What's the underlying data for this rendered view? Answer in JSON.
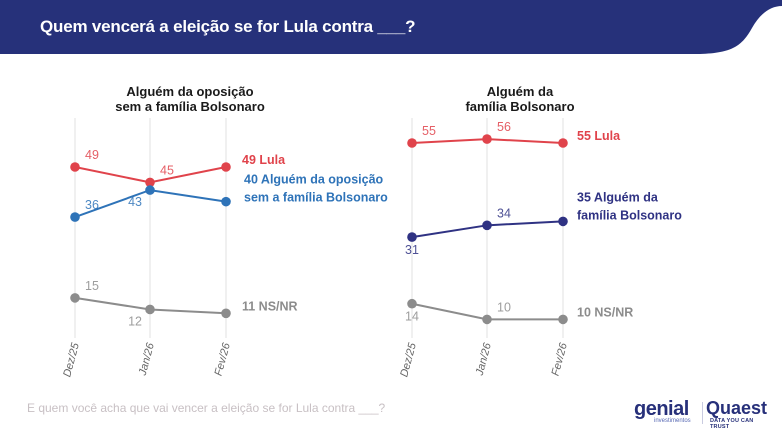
{
  "header": {
    "title": "Quem vencerá a eleição se for Lula contra ___?"
  },
  "footer": {
    "question": "E quem você acha que vai vencer a eleição se for Lula contra ___?",
    "logo_genial": "genial",
    "logo_genial_sub": "investimentos",
    "logo_quaest": "Quaest",
    "logo_quaest_sub": "DATA YOU CAN TRUST"
  },
  "colors": {
    "header_bg": "#26317a",
    "lula": "#e0434b",
    "opposition": "#2e73b8",
    "bolsonaro_family": "#2f3283",
    "nsnr": "#8c8c8c"
  },
  "chart_data": [
    {
      "type": "line",
      "title": "Alguém da oposição\nsem a família Bolsonaro",
      "title_lines": [
        "Alguém da oposição",
        "sem a família Bolsonaro"
      ],
      "x": [
        "Dez/25",
        "Jan/26",
        "Fev/26"
      ],
      "series": [
        {
          "name": "Lula",
          "end_label": [
            "49 Lula"
          ],
          "color": "#e0434b",
          "values": [
            49,
            45,
            49
          ],
          "label_pos": [
            "above",
            "above",
            "none"
          ]
        },
        {
          "name": "Alguém da oposição sem a família Bolsonaro",
          "end_label": [
            "40 Alguém da oposição",
            "sem a família Bolsonaro"
          ],
          "color": "#2e73b8",
          "values": [
            36,
            43,
            40
          ],
          "label_pos": [
            "above",
            "below-left",
            "none"
          ]
        },
        {
          "name": "NS/NR",
          "end_label": [
            "11 NS/NR"
          ],
          "color": "#8c8c8c",
          "values": [
            15,
            12,
            11
          ],
          "label_pos": [
            "above",
            "below-left",
            "none"
          ]
        }
      ],
      "grid": "vertical"
    },
    {
      "type": "line",
      "title": "Alguém da\nfamília Bolsonaro",
      "title_lines": [
        "Alguém da",
        "família Bolsonaro"
      ],
      "x": [
        "Dez/25",
        "Jan/26",
        "Fev/26"
      ],
      "series": [
        {
          "name": "Lula",
          "end_label": [
            "55 Lula"
          ],
          "color": "#e0434b",
          "values": [
            55,
            56,
            55
          ],
          "label_pos": [
            "above",
            "above",
            "none"
          ]
        },
        {
          "name": "Alguém da família Bolsonaro",
          "end_label": [
            "35 Alguém da",
            "família Bolsonaro"
          ],
          "color": "#2f3283",
          "values": [
            31,
            34,
            35
          ],
          "label_pos": [
            "below",
            "above",
            "none"
          ]
        },
        {
          "name": "NS/NR",
          "end_label": [
            "10 NS/NR"
          ],
          "color": "#8c8c8c",
          "values": [
            14,
            10,
            10
          ],
          "label_pos": [
            "below",
            "above",
            "none"
          ]
        }
      ],
      "grid": "vertical"
    }
  ]
}
